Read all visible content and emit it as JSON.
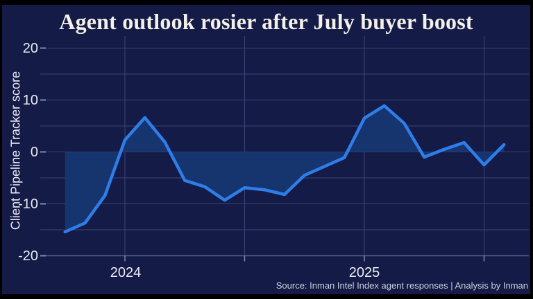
{
  "title": "Agent outlook rosier after July buyer boost",
  "source_note": "Source: Inman Intel Index agent responses | Analysis by Inman",
  "colors": {
    "frame": "#000000",
    "background": "#151b47",
    "line": "#2e7de9",
    "fill": "#16356e",
    "grid": "#3c4474",
    "axis": "#555e93",
    "tick": "#7f89b4",
    "title_text": "#f4f1e8",
    "axis_text": "#e8ebf5",
    "source_text": "#ccd1e0"
  },
  "chart_data": {
    "type": "line",
    "title": "Agent outlook rosier after July buyer boost",
    "series_name": "Client Pipeline Tracker score",
    "ylabel": "Client Pipeline Tracker score",
    "xlabel": "",
    "categories": [
      "Oct 2023",
      "Nov 2023",
      "Dec 2023",
      "Jan 2024",
      "Feb 2024",
      "Mar 2024",
      "Apr 2024",
      "May 2024",
      "Jun 2024",
      "Jul 2024",
      "Aug 2024",
      "Sep 2024",
      "Oct 2024",
      "Nov 2024",
      "Dec 2024",
      "Jan 2025",
      "Feb 2025",
      "Mar 2025",
      "Apr 2025",
      "May 2025",
      "Jun 2025",
      "Jul 2025",
      "Aug 2025"
    ],
    "values": [
      -15.4,
      -13.7,
      -8.4,
      2.3,
      6.6,
      1.9,
      -5.5,
      -6.7,
      -9.3,
      -6.9,
      -7.3,
      -8.2,
      -4.5,
      -2.8,
      -1.1,
      6.5,
      8.9,
      5.5,
      -1.0,
      0.5,
      1.8,
      -2.5,
      1.4
    ],
    "ylim": [
      -20,
      20
    ],
    "y_ticks": [
      20,
      10,
      0,
      -10,
      -20
    ],
    "y_tick_labels": [
      "20",
      "10",
      "0",
      "-10",
      "-20"
    ],
    "y_gridline_step": 5,
    "x_tick_labels": [
      "2024",
      "2025"
    ],
    "x_gridline_month_indices": [
      3,
      9,
      15,
      21
    ],
    "x_label_month_indices": [
      3,
      15
    ],
    "baseline": 0,
    "area_fill_to_zero": true,
    "grid": true,
    "legend": false
  }
}
